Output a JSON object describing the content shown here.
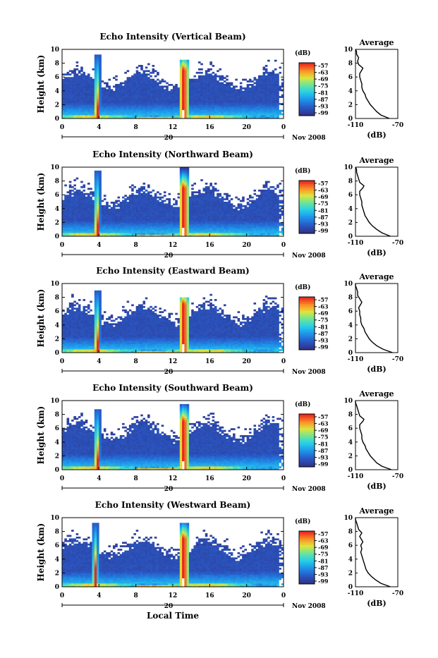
{
  "footer_label": "Local Time",
  "chart_data": [
    {
      "type": "heatmap",
      "title": "Echo Intensity (Vertical Beam)",
      "xlabel": "",
      "ylabel": "Height (km)",
      "x_ticks": [
        "0",
        "4",
        "8",
        "12",
        "16",
        "20",
        "0"
      ],
      "y_ticks": [
        "0",
        "2",
        "4",
        "6",
        "8",
        "10"
      ],
      "xlim": [
        0,
        24
      ],
      "ylim": [
        0,
        10
      ],
      "date_label": "20",
      "month_label": "Nov 2008",
      "colorbar": {
        "label": "(dB)",
        "ticks": [
          "-57",
          "-63",
          "-69",
          "-75",
          "-81",
          "-87",
          "-93",
          "-99"
        ]
      },
      "average": {
        "title": "Average",
        "xlabel": "(dB)",
        "x_ticks": [
          "-110",
          "-70"
        ],
        "y_ticks": [
          "0",
          "2",
          "4",
          "6",
          "8",
          "10"
        ],
        "xlim": [
          -110,
          -70
        ],
        "ylim": [
          0,
          10
        ],
        "profile": [
          [
            -78,
            0
          ],
          [
            -86,
            0.5
          ],
          [
            -90,
            1
          ],
          [
            -93,
            1.5
          ],
          [
            -96,
            2
          ],
          [
            -98,
            2.5
          ],
          [
            -100,
            3
          ],
          [
            -101,
            3.5
          ],
          [
            -103,
            4
          ],
          [
            -104,
            4.5
          ],
          [
            -104,
            5
          ],
          [
            -105,
            5.5
          ],
          [
            -106,
            6
          ],
          [
            -106,
            6.5
          ],
          [
            -104,
            7
          ],
          [
            -103,
            7.3
          ],
          [
            -107,
            7.8
          ],
          [
            -108,
            8.3
          ],
          [
            -107,
            8.8
          ],
          [
            -109,
            9.3
          ],
          [
            -109,
            9.7
          ],
          [
            -110,
            10
          ]
        ]
      },
      "features": {
        "event1_hour": 3.8,
        "event2_hour": 13.2,
        "event1_top_km": 9.2,
        "event2_top_km": 8.6
      }
    },
    {
      "type": "heatmap",
      "title": "Echo Intensity (Northward Beam)",
      "xlabel": "",
      "ylabel": "Height (km)",
      "x_ticks": [
        "0",
        "4",
        "8",
        "12",
        "16",
        "20",
        "0"
      ],
      "y_ticks": [
        "0",
        "2",
        "4",
        "6",
        "8",
        "10"
      ],
      "xlim": [
        0,
        24
      ],
      "ylim": [
        0,
        10
      ],
      "date_label": "20",
      "month_label": "Nov 2008",
      "colorbar": {
        "label": "(dB)",
        "ticks": [
          "-57",
          "-63",
          "-69",
          "-75",
          "-81",
          "-87",
          "-93",
          "-99"
        ]
      },
      "average": {
        "title": "Average",
        "xlabel": "(dB)",
        "x_ticks": [
          "-110",
          "-70"
        ],
        "y_ticks": [
          "0",
          "2",
          "4",
          "6",
          "8",
          "10"
        ],
        "xlim": [
          -110,
          -70
        ],
        "ylim": [
          0,
          10
        ],
        "profile": [
          [
            -77,
            0
          ],
          [
            -85,
            0.5
          ],
          [
            -90,
            1
          ],
          [
            -94,
            1.5
          ],
          [
            -97,
            2
          ],
          [
            -99,
            2.5
          ],
          [
            -101,
            3
          ],
          [
            -102,
            3.5
          ],
          [
            -103,
            4
          ],
          [
            -104,
            4.5
          ],
          [
            -104,
            5
          ],
          [
            -105,
            5.5
          ],
          [
            -106,
            6
          ],
          [
            -106,
            6.5
          ],
          [
            -103,
            7
          ],
          [
            -102,
            7.3
          ],
          [
            -106,
            7.8
          ],
          [
            -107,
            8.3
          ],
          [
            -108,
            8.8
          ],
          [
            -109,
            9.3
          ],
          [
            -109,
            9.7
          ],
          [
            -110,
            10
          ]
        ]
      },
      "features": {
        "event1_hour": 3.8,
        "event2_hour": 13.2,
        "event1_top_km": 9.5,
        "event2_top_km": 10.0
      }
    },
    {
      "type": "heatmap",
      "title": "Echo Intensity (Eastward Beam)",
      "xlabel": "",
      "ylabel": "Height (km)",
      "x_ticks": [
        "0",
        "4",
        "8",
        "12",
        "16",
        "20",
        "0"
      ],
      "y_ticks": [
        "0",
        "2",
        "4",
        "6",
        "8",
        "10"
      ],
      "xlim": [
        0,
        24
      ],
      "ylim": [
        0,
        10
      ],
      "date_label": "20",
      "month_label": "Nov 2008",
      "colorbar": {
        "label": "(dB)",
        "ticks": [
          "-57",
          "-63",
          "-69",
          "-75",
          "-81",
          "-87",
          "-93",
          "-99"
        ]
      },
      "average": {
        "title": "Average",
        "xlabel": "(dB)",
        "x_ticks": [
          "-110",
          "-70"
        ],
        "y_ticks": [
          "0",
          "2",
          "4",
          "6",
          "8",
          "10"
        ],
        "xlim": [
          -110,
          -70
        ],
        "ylim": [
          0,
          10
        ],
        "profile": [
          [
            -75,
            0
          ],
          [
            -84,
            0.5
          ],
          [
            -90,
            1
          ],
          [
            -94,
            1.5
          ],
          [
            -97,
            2
          ],
          [
            -99,
            2.5
          ],
          [
            -101,
            3
          ],
          [
            -102,
            3.5
          ],
          [
            -104,
            4
          ],
          [
            -105,
            4.5
          ],
          [
            -105,
            5
          ],
          [
            -106,
            5.5
          ],
          [
            -106,
            6
          ],
          [
            -107,
            6.5
          ],
          [
            -105,
            7
          ],
          [
            -104,
            7.3
          ],
          [
            -106,
            7.8
          ],
          [
            -108,
            8.3
          ],
          [
            -108,
            8.8
          ],
          [
            -109,
            9.3
          ],
          [
            -110,
            9.7
          ],
          [
            -110,
            10
          ]
        ]
      },
      "features": {
        "event1_hour": 3.8,
        "event2_hour": 13.2,
        "event1_top_km": 9.0,
        "event2_top_km": 8.0
      }
    },
    {
      "type": "heatmap",
      "title": "Echo Intensity (Southward Beam)",
      "xlabel": "",
      "ylabel": "Height (km)",
      "x_ticks": [
        "0",
        "4",
        "8",
        "12",
        "16",
        "20",
        "0"
      ],
      "y_ticks": [
        "0",
        "2",
        "4",
        "6",
        "8",
        "10"
      ],
      "xlim": [
        0,
        24
      ],
      "ylim": [
        0,
        10
      ],
      "date_label": "20",
      "month_label": "Nov 2008",
      "colorbar": {
        "label": "(dB)",
        "ticks": [
          "-57",
          "-63",
          "-69",
          "-75",
          "-81",
          "-87",
          "-93",
          "-99"
        ]
      },
      "average": {
        "title": "Average",
        "xlabel": "(dB)",
        "x_ticks": [
          "-110",
          "-70"
        ],
        "y_ticks": [
          "0",
          "2",
          "4",
          "6",
          "8",
          "10"
        ],
        "xlim": [
          -110,
          -70
        ],
        "ylim": [
          0,
          10
        ],
        "profile": [
          [
            -76,
            0
          ],
          [
            -85,
            0.5
          ],
          [
            -90,
            1
          ],
          [
            -93,
            1.5
          ],
          [
            -96,
            2
          ],
          [
            -98,
            2.5
          ],
          [
            -100,
            3
          ],
          [
            -101,
            3.5
          ],
          [
            -103,
            4
          ],
          [
            -104,
            4.5
          ],
          [
            -104,
            5
          ],
          [
            -105,
            5.5
          ],
          [
            -106,
            6
          ],
          [
            -106,
            6.5
          ],
          [
            -103,
            7
          ],
          [
            -102,
            7.3
          ],
          [
            -106,
            7.8
          ],
          [
            -107,
            8.3
          ],
          [
            -108,
            8.8
          ],
          [
            -109,
            9.3
          ],
          [
            -110,
            9.7
          ],
          [
            -110,
            10
          ]
        ]
      },
      "features": {
        "event1_hour": 3.8,
        "event2_hour": 13.2,
        "event1_top_km": 8.8,
        "event2_top_km": 9.6
      }
    },
    {
      "type": "heatmap",
      "title": "Echo Intensity (Westward Beam)",
      "xlabel": "",
      "ylabel": "Height (km)",
      "x_ticks": [
        "0",
        "4",
        "8",
        "12",
        "16",
        "20",
        "0"
      ],
      "y_ticks": [
        "0",
        "2",
        "4",
        "6",
        "8",
        "10"
      ],
      "xlim": [
        0,
        24
      ],
      "ylim": [
        0,
        10
      ],
      "date_label": "20",
      "month_label": "Nov 2008",
      "colorbar": {
        "label": "(dB)",
        "ticks": [
          "-57",
          "-63",
          "-69",
          "-75",
          "-81",
          "-87",
          "-93",
          "-99"
        ]
      },
      "average": {
        "title": "Average",
        "xlabel": "(dB)",
        "x_ticks": [
          "-110",
          "-70"
        ],
        "y_ticks": [
          "0",
          "2",
          "4",
          "6",
          "8",
          "10"
        ],
        "xlim": [
          -110,
          -70
        ],
        "ylim": [
          0,
          10
        ],
        "profile": [
          [
            -77,
            0
          ],
          [
            -86,
            0.5
          ],
          [
            -91,
            1
          ],
          [
            -95,
            1.5
          ],
          [
            -98,
            2
          ],
          [
            -100,
            2.5
          ],
          [
            -101,
            3
          ],
          [
            -102,
            3.5
          ],
          [
            -103,
            4
          ],
          [
            -104,
            4.5
          ],
          [
            -105,
            5
          ],
          [
            -104,
            5.5
          ],
          [
            -105,
            6
          ],
          [
            -103,
            6.5
          ],
          [
            -105,
            7
          ],
          [
            -106,
            7.3
          ],
          [
            -104,
            7.8
          ],
          [
            -107,
            8.3
          ],
          [
            -108,
            8.8
          ],
          [
            -109,
            9.3
          ],
          [
            -110,
            9.7
          ],
          [
            -110,
            10
          ]
        ]
      },
      "features": {
        "event1_hour": 3.6,
        "event2_hour": 13.2,
        "event1_top_km": 9.2,
        "event2_top_km": 9.2
      }
    }
  ]
}
